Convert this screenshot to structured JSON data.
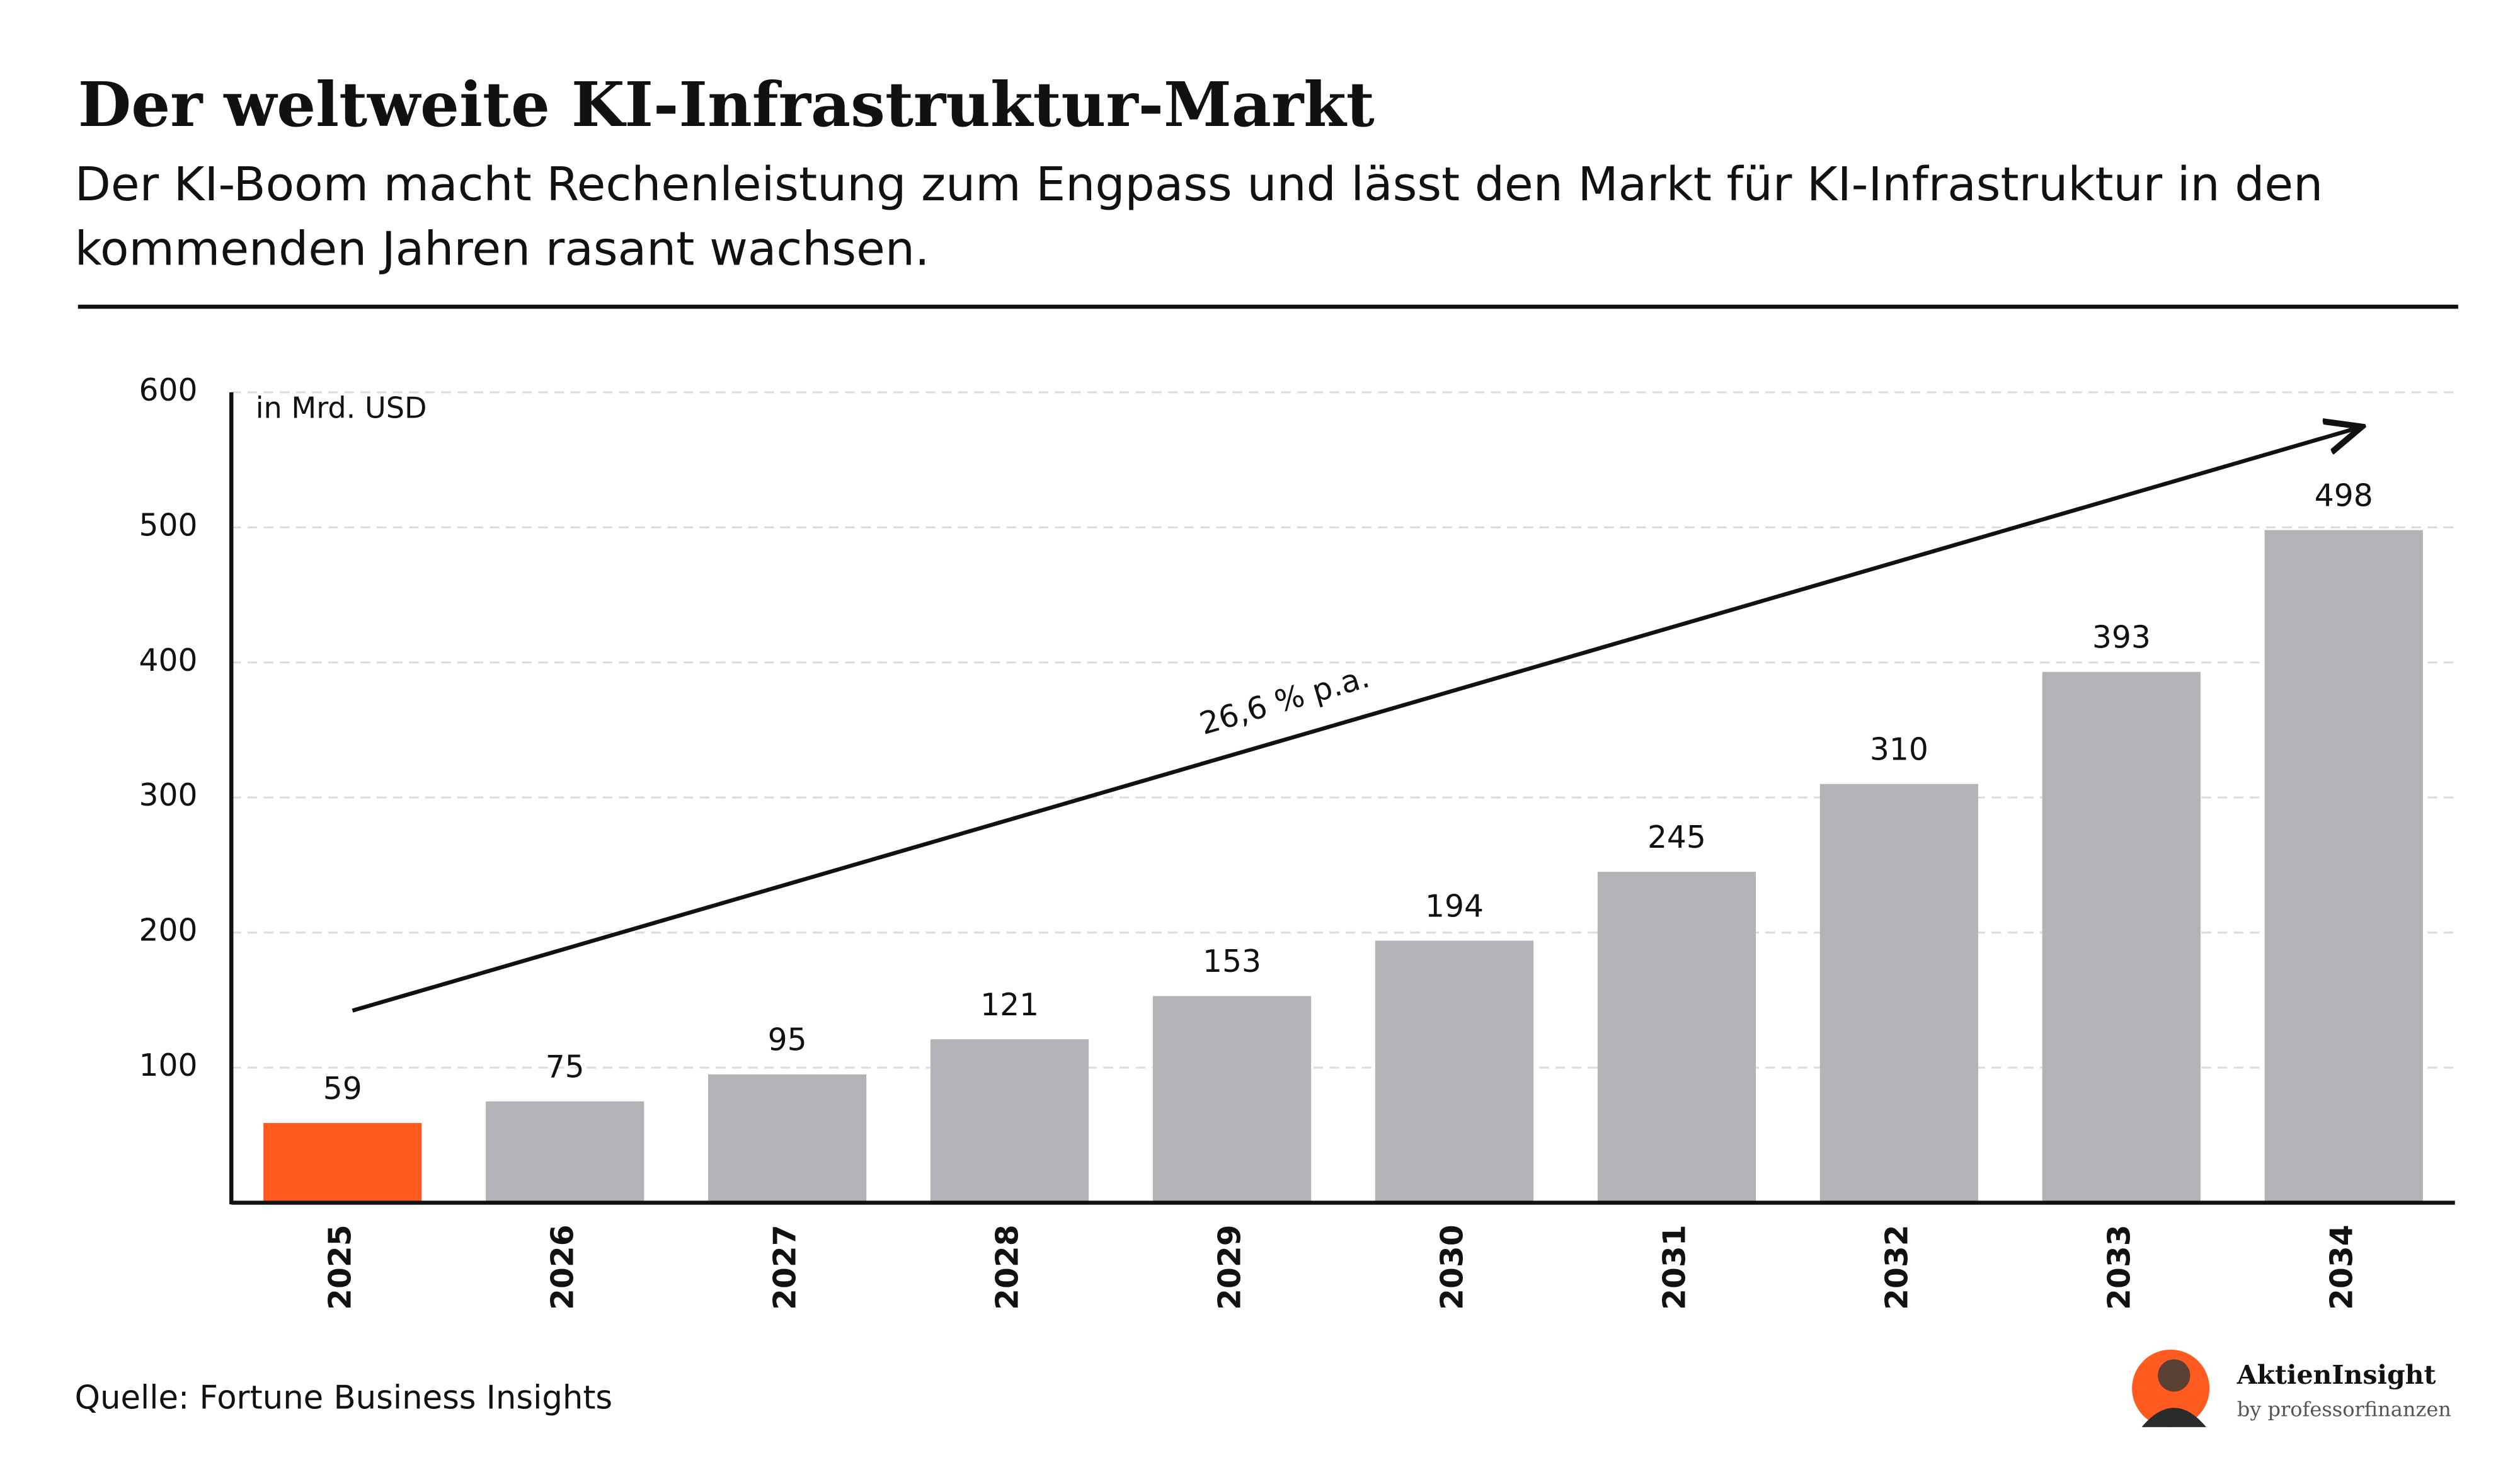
{
  "chart_data": {
    "type": "bar",
    "title": "Der weltweite KI-Infrastruktur-Markt",
    "subtitle": "Der KI-Boom macht Rechenleistung zum Engpass und lässt den Markt für KI-Infrastruktur in den kommenden Jahren rasant wachsen.",
    "y_label": "in Mrd. USD",
    "annotation": "26,6 % p.a.",
    "source": "Quelle: Fortune Business Insights",
    "brand": "AktienInsight",
    "brand_sub": "by professorfinanzen",
    "categories": [
      "2025",
      "2026",
      "2027",
      "2028",
      "2029",
      "2030",
      "2031",
      "2032",
      "2033",
      "2034"
    ],
    "values": [
      59,
      75,
      95,
      121,
      153,
      194,
      245,
      310,
      393,
      498
    ],
    "colors": [
      "#ff5a1f",
      "#b3b3b7",
      "#b3b3b7",
      "#b3b3b7",
      "#b3b3b7",
      "#b3b3b7",
      "#b3b3b7",
      "#b3b3b7",
      "#b3b3b7",
      "#b3b3b7"
    ],
    "ylim": [
      0,
      600
    ],
    "yticks": [
      100,
      200,
      300,
      400,
      500,
      600
    ],
    "grid": true
  }
}
